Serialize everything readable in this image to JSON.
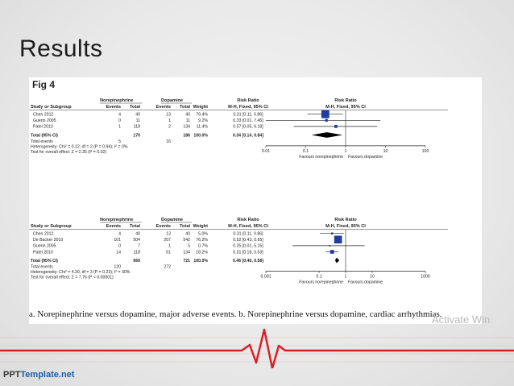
{
  "slide": {
    "title": "Results",
    "figure_label": "Fig 4",
    "caption": "a. Norepinephrine versus dopamine, major adverse events. b. Norepinephrine versus dopamine, cardiac arrhythmias.",
    "watermark": "Activate Win",
    "brand_part1": "PPT",
    "brand_part2": "Template.net"
  },
  "colors": {
    "ecg_line": "#d91f26",
    "ecg_grid": "#e8a8ab",
    "ci_marker": "#1f3c9e",
    "brand_blue": "#1e5fa8"
  },
  "chart_data": [
    {
      "type": "forest",
      "headers": {
        "study": "Study or Subgroup",
        "group1": "Norepinephrine",
        "group2": "Dopamine",
        "events": "Events",
        "total": "Total",
        "weight": "Weight",
        "rr": "Risk Ratio",
        "rr_method": "M-H, Fixed, 95% CI"
      },
      "studies": [
        {
          "name": "Chen 2012",
          "ev1": "4",
          "tot1": "40",
          "ev2": "13",
          "tot2": "40",
          "weight": "79.4%",
          "ci_text": "0.31 [0.11, 0.86]",
          "rr": 0.31,
          "lo": 0.11,
          "hi": 0.86
        },
        {
          "name": "Guerin 2005",
          "ev1": "0",
          "tot1": "11",
          "ev2": "1",
          "tot2": "11",
          "weight": "9.2%",
          "ci_text": "0.33 [0.01, 7.45]",
          "rr": 0.33,
          "lo": 0.01,
          "hi": 7.45
        },
        {
          "name": "Patel 2010",
          "ev1": "1",
          "tot1": "118",
          "ev2": "2",
          "tot2": "134",
          "weight": "11.4%",
          "ci_text": "0.57 [0.05, 6.18]",
          "rr": 0.57,
          "lo": 0.05,
          "hi": 6.18
        }
      ],
      "total": {
        "label": "Total (95% CI)",
        "tot1": "170",
        "tot2": "186",
        "weight": "100.0%",
        "ci_text": "0.34 [0.14, 0.84]",
        "rr": 0.34,
        "lo": 0.14,
        "hi": 0.84
      },
      "total_events": {
        "label": "Total events",
        "ev1": "5",
        "ev2": "16"
      },
      "heterogeneity": "Heterogeneity: Chi² = 0.12, df = 2 (P = 0.94); I² = 0%",
      "overall_effect": "Test for overall effect: Z = 2.35 (P = 0.02)",
      "axis": {
        "ticks": [
          0.01,
          0.1,
          1,
          10,
          100
        ],
        "tick_labels": [
          "0.01",
          "0.1",
          "1",
          "10",
          "100"
        ],
        "xlim": [
          0.01,
          100
        ],
        "scale": "log",
        "favours_left": "Favours norepinephrine",
        "favours_right": "Favours dopamine"
      }
    },
    {
      "type": "forest",
      "headers": {
        "study": "Study or Subgroup",
        "group1": "Norepinephrine",
        "group2": "Dopamine",
        "events": "Events",
        "total": "Total",
        "weight": "Weight",
        "rr": "Risk Ratio",
        "rr_method": "M-H, Fixed, 95% CI"
      },
      "studies": [
        {
          "name": "Chen 2012",
          "ev1": "4",
          "tot1": "40",
          "ev2": "13",
          "tot2": "40",
          "weight": "5.0%",
          "ci_text": "0.31 [0.11, 0.86]",
          "rr": 0.31,
          "lo": 0.11,
          "hi": 0.86
        },
        {
          "name": "De Backer 2010",
          "ev1": "101",
          "tot1": "504",
          "ev2": "207",
          "tot2": "542",
          "weight": "76.2%",
          "ci_text": "0.52 [0.43, 0.65]",
          "rr": 0.52,
          "lo": 0.43,
          "hi": 0.65
        },
        {
          "name": "Guerin 2005",
          "ev1": "0",
          "tot1": "7",
          "ev2": "1",
          "tot2": "5",
          "weight": "0.7%",
          "ci_text": "0.25 [0.01, 5.15]",
          "rr": 0.25,
          "lo": 0.01,
          "hi": 5.15
        },
        {
          "name": "Patel 2010",
          "ev1": "14",
          "tot1": "118",
          "ev2": "51",
          "tot2": "134",
          "weight": "18.2%",
          "ci_text": "0.31 [0.18, 0.53]",
          "rr": 0.31,
          "lo": 0.18,
          "hi": 0.53
        }
      ],
      "total": {
        "label": "Total (95% CI)",
        "tot1": "669",
        "tot2": "721",
        "weight": "100.0%",
        "ci_text": "0.46 [0.40, 0.58]",
        "rr": 0.46,
        "lo": 0.4,
        "hi": 0.58
      },
      "total_events": {
        "label": "Total events",
        "ev1": "120",
        "ev2": "272"
      },
      "heterogeneity": "Heterogeneity: Chi² = 4.30, df = 3 (P = 0.23); I² = 30%",
      "overall_effect": "Test for overall effect: Z = 7.76 (P < 0.00001)",
      "axis": {
        "ticks": [
          0.001,
          0.1,
          1,
          10,
          1000
        ],
        "tick_labels": [
          "0.001",
          "0.1",
          "1",
          "10",
          "1000"
        ],
        "xlim": [
          0.001,
          1000
        ],
        "scale": "log",
        "favours_left": "Favours norepinephrine",
        "favours_right": "Favours dopamine"
      }
    }
  ]
}
